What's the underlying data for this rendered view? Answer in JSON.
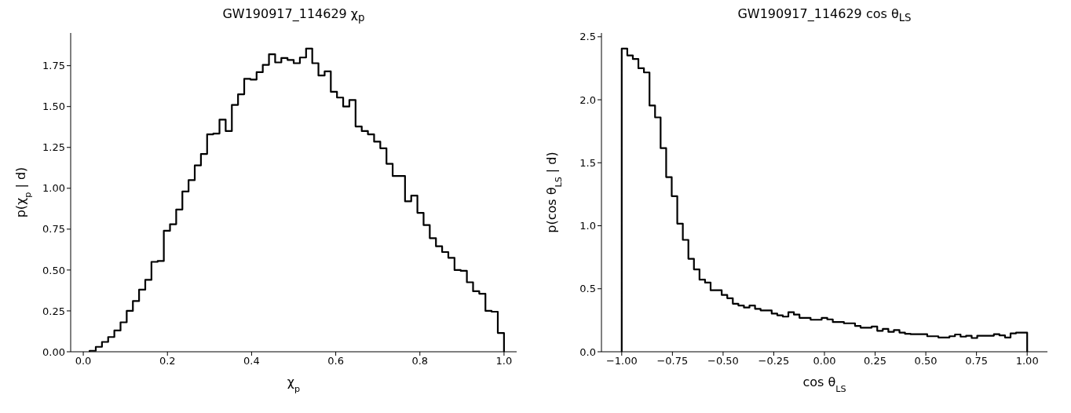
{
  "chart_data": [
    {
      "type": "histogram",
      "title": "GW190917_114629 χ$_{p}$",
      "xlabel": "χ$_{p}$",
      "ylabel": "p(χ$_{p}$ | d)",
      "color": "#000000",
      "bins": [
        0.015,
        0.0297,
        0.0444,
        0.0591,
        0.0738,
        0.0885,
        0.1032,
        0.1179,
        0.1326,
        0.1473,
        0.162,
        0.1767,
        0.1914,
        0.2061,
        0.2208,
        0.2355,
        0.2502,
        0.2649,
        0.2796,
        0.2943,
        0.309,
        0.3237,
        0.3384,
        0.3531,
        0.3678,
        0.3825,
        0.3972,
        0.4119,
        0.4266,
        0.4413,
        0.456,
        0.4707,
        0.4854,
        0.5001,
        0.5148,
        0.5295,
        0.5442,
        0.5589,
        0.5736,
        0.5883,
        0.603,
        0.6177,
        0.6324,
        0.6471,
        0.6618,
        0.6765,
        0.6912,
        0.7059,
        0.7206,
        0.7353,
        0.75,
        0.7647,
        0.7794,
        0.7941,
        0.8088,
        0.8235,
        0.8382,
        0.8529,
        0.8676,
        0.8823,
        0.897,
        0.9117,
        0.9264,
        0.9411,
        0.9558,
        0.9705,
        0.9852,
        0.9999
      ],
      "values": [
        0.006,
        0.03,
        0.06,
        0.09,
        0.13,
        0.18,
        0.25,
        0.31,
        0.38,
        0.44,
        0.55,
        0.555,
        0.74,
        0.78,
        0.87,
        0.98,
        1.05,
        1.14,
        1.21,
        1.33,
        1.335,
        1.42,
        1.35,
        1.51,
        1.575,
        1.67,
        1.665,
        1.71,
        1.755,
        1.82,
        1.77,
        1.797,
        1.785,
        1.765,
        1.8,
        1.855,
        1.765,
        1.69,
        1.715,
        1.59,
        1.555,
        1.5,
        1.54,
        1.378,
        1.35,
        1.33,
        1.285,
        1.245,
        1.15,
        1.075,
        1.075,
        0.92,
        0.955,
        0.85,
        0.775,
        0.695,
        0.645,
        0.61,
        0.575,
        0.5,
        0.495,
        0.425,
        0.37,
        0.355,
        0.25,
        0.245,
        0.115
      ],
      "xlim": [
        -0.03,
        1.03
      ],
      "xticks": [
        {
          "value": 0,
          "label": "0.0"
        },
        {
          "value": 0.2,
          "label": "0.2"
        },
        {
          "value": 0.4,
          "label": "0.4"
        },
        {
          "value": 0.6,
          "label": "0.6"
        },
        {
          "value": 0.8,
          "label": "0.8"
        },
        {
          "value": 1,
          "label": "1.0"
        }
      ],
      "ylim": [
        0,
        1.95
      ],
      "yticks": [
        {
          "value": 0,
          "label": "0.00"
        },
        {
          "value": 0.25,
          "label": "0.25"
        },
        {
          "value": 0.5,
          "label": "0.50"
        },
        {
          "value": 0.75,
          "label": "0.75"
        },
        {
          "value": 1,
          "label": "1.00"
        },
        {
          "value": 1.25,
          "label": "1.25"
        },
        {
          "value": 1.5,
          "label": "1.50"
        },
        {
          "value": 1.75,
          "label": "1.75"
        }
      ]
    },
    {
      "type": "histogram",
      "title": "GW190917_114629 cos θ$_{LS}$",
      "xlabel": "cos θ$_{LS}$",
      "ylabel": "p(cos θ$_{LS}$ | d)",
      "color": "#000000",
      "bins": [
        -1,
        -0.9726,
        -0.9452,
        -0.9178,
        -0.8904,
        -0.863,
        -0.8356,
        -0.8082,
        -0.7808,
        -0.7534,
        -0.726,
        -0.6986,
        -0.6712,
        -0.6438,
        -0.6164,
        -0.589,
        -0.5616,
        -0.5342,
        -0.5068,
        -0.4794,
        -0.452,
        -0.4246,
        -0.3972,
        -0.3698,
        -0.3424,
        -0.315,
        -0.2876,
        -0.2602,
        -0.2328,
        -0.2054,
        -0.178,
        -0.1506,
        -0.1232,
        -0.0958,
        -0.0684,
        -0.041,
        -0.0136,
        0.0138,
        0.0412,
        0.0686,
        0.096,
        0.1234,
        0.1508,
        0.1782,
        0.2056,
        0.233,
        0.2604,
        0.2878,
        0.3152,
        0.3426,
        0.37,
        0.3974,
        0.4248,
        0.4522,
        0.4796,
        0.507,
        0.5344,
        0.5618,
        0.5892,
        0.6166,
        0.644,
        0.6714,
        0.6988,
        0.7262,
        0.7536,
        0.781,
        0.8084,
        0.8358,
        0.8632,
        0.8906,
        0.918,
        0.9454,
        0.9728,
        1.0
      ],
      "values": [
        2.406,
        2.352,
        2.323,
        2.25,
        2.217,
        1.954,
        1.86,
        1.616,
        1.386,
        1.235,
        1.017,
        0.888,
        0.738,
        0.654,
        0.572,
        0.549,
        0.488,
        0.488,
        0.451,
        0.425,
        0.381,
        0.367,
        0.351,
        0.367,
        0.341,
        0.328,
        0.328,
        0.303,
        0.289,
        0.279,
        0.314,
        0.295,
        0.269,
        0.269,
        0.254,
        0.254,
        0.269,
        0.257,
        0.236,
        0.236,
        0.226,
        0.226,
        0.205,
        0.191,
        0.191,
        0.2,
        0.166,
        0.181,
        0.158,
        0.172,
        0.152,
        0.142,
        0.139,
        0.139,
        0.139,
        0.123,
        0.123,
        0.113,
        0.113,
        0.123,
        0.137,
        0.12,
        0.127,
        0.109,
        0.127,
        0.127,
        0.127,
        0.139,
        0.13,
        0.113,
        0.146,
        0.152,
        0.152
      ],
      "xlim": [
        -1.1,
        1.1
      ],
      "xticks": [
        {
          "value": -1,
          "label": "−1.00"
        },
        {
          "value": -0.75,
          "label": "−0.75"
        },
        {
          "value": -0.5,
          "label": "−0.50"
        },
        {
          "value": -0.25,
          "label": "−0.25"
        },
        {
          "value": 0,
          "label": "0.00"
        },
        {
          "value": 0.25,
          "label": "0.25"
        },
        {
          "value": 0.5,
          "label": "0.50"
        },
        {
          "value": 0.75,
          "label": "0.75"
        },
        {
          "value": 1,
          "label": "1.00"
        }
      ],
      "ylim": [
        0,
        2.53
      ],
      "yticks": [
        {
          "value": 0,
          "label": "0.0"
        },
        {
          "value": 0.5,
          "label": "0.5"
        },
        {
          "value": 1,
          "label": "1.0"
        },
        {
          "value": 1.5,
          "label": "1.5"
        },
        {
          "value": 2,
          "label": "2.0"
        },
        {
          "value": 2.5,
          "label": "2.5"
        }
      ]
    }
  ]
}
